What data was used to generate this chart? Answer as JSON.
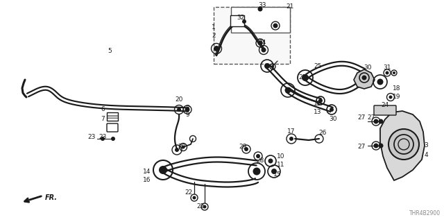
{
  "diagram_code": "THR4B2900",
  "bg_color": "#ffffff",
  "line_color": "#1a1a1a",
  "fig_width": 6.4,
  "fig_height": 3.2,
  "dpi": 100
}
